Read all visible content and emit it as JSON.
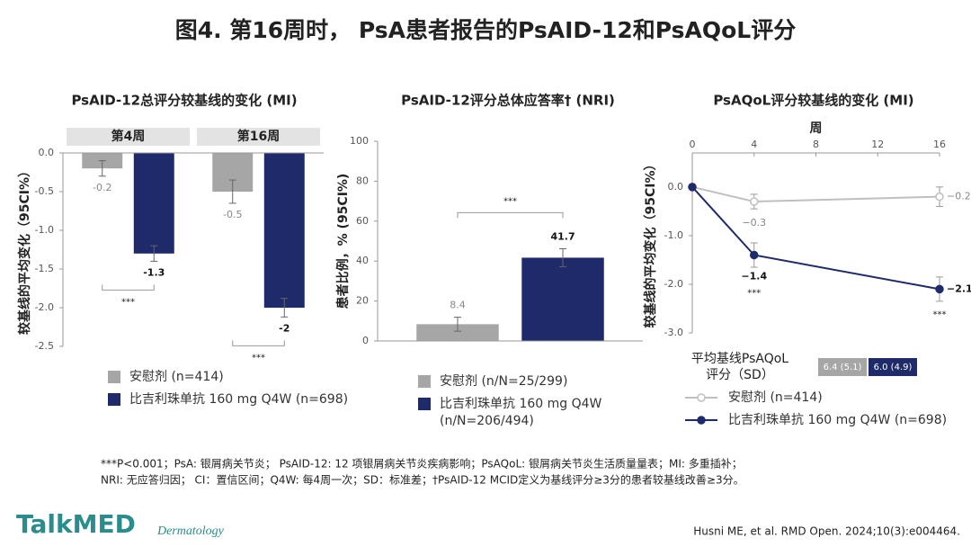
{
  "title": "图4. 第16周时， PsA患者报告的PsAID-12和PsAQoL评分",
  "chart_data": [
    {
      "type": "bar",
      "title": "PsAID-12总评分较基线的变化 (MI)",
      "ylabel": "较基线的平均变化（95CI%）",
      "categories": [
        "第4周",
        "第16周"
      ],
      "series": [
        {
          "name": "安慰剂 (n=414)",
          "color": "#a6a6a6",
          "values": [
            -0.2,
            -0.5
          ],
          "errors": [
            0.1,
            0.15
          ]
        },
        {
          "name": "比吉利珠单抗 160 mg Q4W (n=698)",
          "color": "#1f2a6b",
          "values": [
            -1.3,
            -2.0
          ],
          "errors": [
            0.1,
            0.12
          ]
        }
      ],
      "ylim": [
        -2.5,
        0
      ],
      "yticks": [
        {
          "value": 0,
          "label": "0.0"
        },
        -0.5,
        {
          "value": -1,
          "label": "-1.0"
        },
        -1.5,
        {
          "value": -2,
          "label": "-2.0"
        },
        -2.5
      ],
      "significance": "***"
    },
    {
      "type": "bar",
      "title": "PsAID-12评分总体应答率† (NRI)",
      "ylabel": "患者比例，% (95CI%)",
      "categories": [
        null
      ],
      "series": [
        {
          "name": "安慰剂 (n/N=25/299)",
          "color": "#a6a6a6",
          "values": [
            8.4
          ],
          "errors": [
            3.5
          ]
        },
        {
          "name": "比吉利珠单抗 160 mg Q4W (n/N=206/494)",
          "color": "#1f2a6b",
          "values": [
            41.7
          ],
          "errors": [
            4.5
          ]
        }
      ],
      "ylim": [
        0,
        100
      ],
      "yticks": [
        0,
        20,
        40,
        60,
        80,
        100
      ],
      "significance": "***"
    },
    {
      "type": "line",
      "title": "PsAQoL评分较基线的变化 (MI)",
      "ylabel": "较基线的平均变化（95CI%）",
      "xlabel": "周",
      "x": [
        0,
        4,
        16
      ],
      "series": [
        {
          "name": "安慰剂 (n=414)",
          "color": "#bfbfbf",
          "values": [
            0,
            -0.3,
            -0.2
          ],
          "errors": [
            null,
            0.15,
            0.2
          ],
          "value_labels": [
            null,
            "−0.3",
            "−0.2"
          ]
        },
        {
          "name": "比吉利珠单抗 160 mg Q4W (n=698)",
          "color": "#1f2a6b",
          "values": [
            0,
            -1.4,
            -2.1
          ],
          "errors": [
            null,
            0.25,
            0.25
          ],
          "value_labels": [
            null,
            "−1.4",
            "−2.1"
          ]
        }
      ],
      "xlim": [
        0,
        16
      ],
      "xticks": [
        0,
        4,
        8,
        12,
        16
      ],
      "ylim": [
        -3,
        0.7
      ],
      "yticks": [
        {
          "value": 0,
          "label": "0.0"
        },
        {
          "value": -1,
          "label": "-1.0"
        },
        {
          "value": -2,
          "label": "-2.0"
        },
        {
          "value": -3,
          "label": "-3.0"
        }
      ],
      "significance": "***",
      "baseline": {
        "label": [
          "平均基线PsAQoL",
          "评分（SD）"
        ],
        "values": [
          "6.4 (5.1)",
          "6.0 (4.9)"
        ]
      }
    }
  ],
  "footnotes": [
    "***P<0.001；PsA: 银屑病关节炎；  PsAID-12: 12 项银屑病关节炎疾病影响；PsAQoL: 银屑病关节炎生活质量量表；MI: 多重插补；",
    "NRI: 无应答归因；  CI：置信区间；Q4W: 每4周一次；SD：标准差；†PsAID-12 MCID定义为基线评分≥3分的患者较基线改善≥3分。"
  ],
  "logo": "TalkMED",
  "logo_tag": "Dermatology",
  "citation": "Husni ME, et al. RMD Open. 2024;10(3):e004464."
}
